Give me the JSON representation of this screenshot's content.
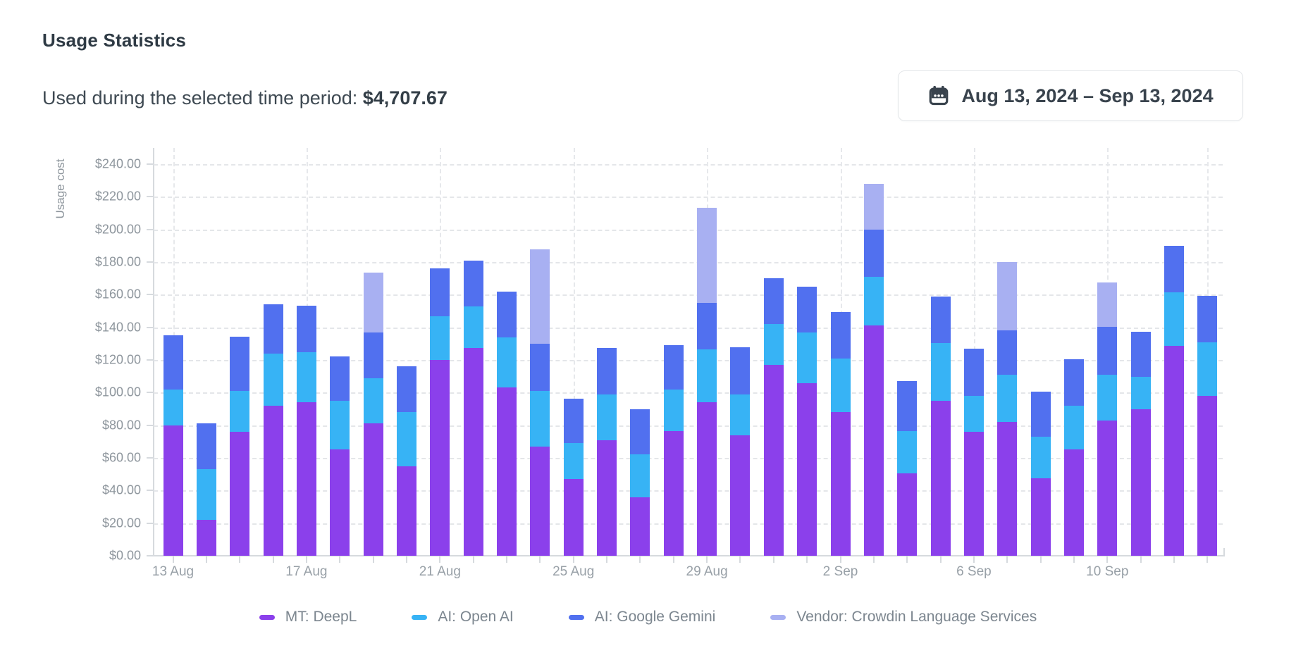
{
  "header": {
    "title": "Usage Statistics",
    "subtitle_label": "Used during the selected time period: ",
    "subtitle_amount": "$4,707.67",
    "date_range": "Aug 13, 2024 – Sep 13, 2024"
  },
  "colors": {
    "deepl_purple": "#8b40eb",
    "openai_cyan": "#37b3f5",
    "gemini_blue": "#5170ef",
    "vendor_lavender": "#a8b0f2",
    "grid": "#e4e6e9",
    "axis": "#d6dade",
    "axis_text": "#8e969d",
    "dark_text": "#2e3a44"
  },
  "chart_data": {
    "type": "bar",
    "stacked": true,
    "ylabel": "Usage cost",
    "ylim": [
      0,
      250
    ],
    "y_tick_step": 20,
    "grid": true,
    "legend_position": "bottom",
    "y_ticks": [
      "$0.00",
      "$20.00",
      "$40.00",
      "$60.00",
      "$80.00",
      "$100.00",
      "$120.00",
      "$140.00",
      "$160.00",
      "$180.00",
      "$200.00",
      "$220.00",
      "$240.00"
    ],
    "x": [
      "13 Aug",
      "14 Aug",
      "15 Aug",
      "16 Aug",
      "17 Aug",
      "18 Aug",
      "19 Aug",
      "20 Aug",
      "21 Aug",
      "22 Aug",
      "23 Aug",
      "24 Aug",
      "25 Aug",
      "26 Aug",
      "27 Aug",
      "28 Aug",
      "29 Aug",
      "30 Aug",
      "31 Aug",
      "1 Sep",
      "2 Sep",
      "3 Sep",
      "4 Sep",
      "5 Sep",
      "6 Sep",
      "7 Sep",
      "8 Sep",
      "9 Sep",
      "10 Sep",
      "11 Sep",
      "12 Sep",
      "13 Sep"
    ],
    "x_label_indices": [
      0,
      4,
      8,
      12,
      16,
      20,
      24,
      28
    ],
    "v_grid_indices": [
      0,
      4,
      8,
      12,
      16,
      20,
      24,
      28,
      31
    ],
    "series": [
      {
        "name": "MT: DeepL",
        "color": "#8b40eb",
        "values": [
          80,
          22,
          76,
          92,
          94,
          65,
          81,
          55,
          120,
          127.5,
          103,
          67,
          47,
          71,
          36,
          76.5,
          94,
          74,
          117,
          106,
          88,
          141,
          50.5,
          95,
          76,
          82,
          47.5,
          65,
          83,
          90,
          128.5,
          98
        ]
      },
      {
        "name": "AI: Open AI",
        "color": "#37b3f5",
        "values": [
          22,
          31,
          25,
          32,
          31,
          30,
          28,
          33,
          27,
          25.5,
          31,
          34,
          22,
          28,
          26,
          25.5,
          32.5,
          25,
          25,
          31,
          33,
          30,
          26,
          35.5,
          22,
          29,
          25.5,
          27,
          28,
          19.5,
          33,
          33
        ]
      },
      {
        "name": "AI: Google Gemini",
        "color": "#5170ef",
        "values": [
          33,
          28,
          33.5,
          30,
          28.5,
          27,
          28,
          28,
          29,
          28,
          28,
          29,
          27.5,
          28.5,
          28,
          27,
          28.5,
          29,
          28,
          28,
          28.5,
          29,
          30.5,
          28.5,
          29,
          27,
          27.5,
          28.5,
          29.5,
          28,
          28.5,
          28.5
        ]
      },
      {
        "name": "Vendor: Crowdin Language Services",
        "color": "#a8b0f2",
        "values": [
          0,
          0,
          0,
          0,
          0,
          0,
          36.5,
          0,
          0,
          0,
          0,
          58,
          0,
          0,
          0,
          0,
          58.5,
          0,
          0,
          0,
          0,
          28,
          0,
          0,
          0,
          42,
          0,
          0,
          27,
          0,
          0,
          0
        ]
      }
    ]
  }
}
